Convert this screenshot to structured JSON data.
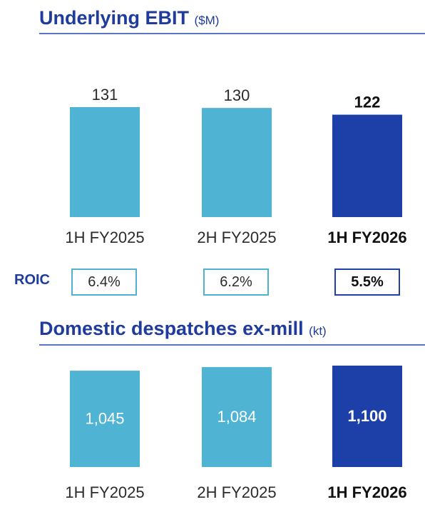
{
  "colors": {
    "prior": "#4fb3d3",
    "current": "#1c40a8",
    "title": "#1f3b9c"
  },
  "ebit": {
    "title": "Underlying EBIT",
    "unit": "($M)"
  },
  "roic": {
    "label": "ROIC",
    "values": [
      "6.4%",
      "6.2%",
      "5.5%"
    ]
  },
  "despatches": {
    "title": "Domestic despatches ex-mill",
    "unit": "(kt)"
  },
  "chart_data": [
    {
      "type": "bar",
      "title": "Underlying EBIT ($M)",
      "categories": [
        "1H FY2025",
        "2H FY2025",
        "1H FY2026"
      ],
      "values": [
        131,
        130,
        122
      ],
      "value_labels": [
        "131",
        "130",
        "122"
      ],
      "highlight_index": 2,
      "label_position": "above",
      "ylim": [
        0,
        131
      ]
    },
    {
      "type": "bar",
      "title": "Domestic despatches ex-mill (kt)",
      "categories": [
        "1H FY2025",
        "2H FY2025",
        "1H FY2026"
      ],
      "values": [
        1045,
        1084,
        1100
      ],
      "value_labels": [
        "1,045",
        "1,084",
        "1,100"
      ],
      "highlight_index": 2,
      "label_position": "inside",
      "ylim": [
        0,
        1100
      ]
    }
  ]
}
